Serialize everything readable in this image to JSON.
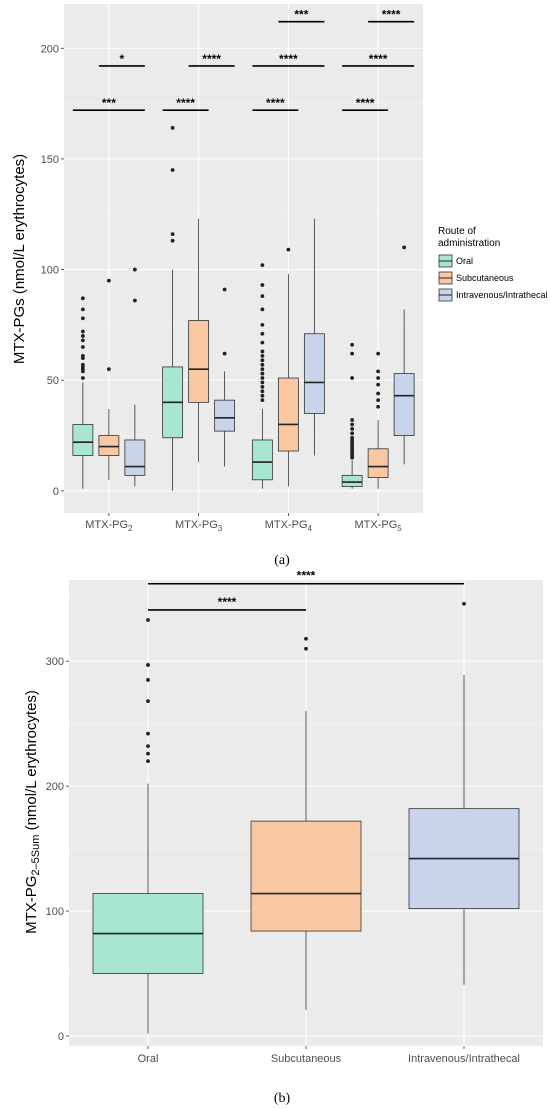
{
  "panel_a_label": "(a)",
  "panel_b_label": "(b)",
  "legend": {
    "title_line1": "Route of",
    "title_line2": "administration",
    "items": [
      {
        "label": "Oral",
        "color": "#a8e6d2"
      },
      {
        "label": "Subcutaneous",
        "color": "#f9c8a2"
      },
      {
        "label": "Intravenous/Intrathecal",
        "color": "#c8d4ea"
      }
    ]
  },
  "chart_data": [
    {
      "type": "box",
      "ylabel": "MTX-PGs (nmol/L erythrocytes)",
      "ylim": [
        -10,
        220
      ],
      "yticks": [
        0,
        50,
        100,
        150,
        200
      ],
      "categories": [
        {
          "base": "MTX-PG",
          "sub": "2"
        },
        {
          "base": "MTX-PG",
          "sub": "3"
        },
        {
          "base": "MTX-PG",
          "sub": "4"
        },
        {
          "base": "MTX-PG",
          "sub": "5"
        }
      ],
      "series_colors": [
        "#a8e6d2",
        "#f9c8a2",
        "#c8d4ea"
      ],
      "boxes": [
        [
          {
            "min": 1,
            "q1": 16,
            "median": 22,
            "q3": 30,
            "max": 49,
            "outliers": [
              51,
              54,
              55,
              56,
              57,
              60,
              61,
              65,
              68,
              70,
              72,
              78,
              82,
              87
            ]
          },
          {
            "min": 5,
            "q1": 16,
            "median": 20,
            "q3": 25,
            "max": 37,
            "outliers": [
              55,
              95
            ]
          },
          {
            "min": 2,
            "q1": 7,
            "median": 11,
            "q3": 23,
            "max": 39,
            "outliers": [
              86,
              100
            ]
          }
        ],
        [
          {
            "min": 0,
            "q1": 24,
            "median": 40,
            "q3": 56,
            "max": 100,
            "outliers": [
              113,
              116,
              145,
              164
            ]
          },
          {
            "min": 13,
            "q1": 40,
            "median": 55,
            "q3": 77,
            "max": 123,
            "outliers": []
          },
          {
            "min": 11,
            "q1": 27,
            "median": 33,
            "q3": 41,
            "max": 54,
            "outliers": [
              62,
              91
            ]
          }
        ],
        [
          {
            "min": 1,
            "q1": 5,
            "median": 13,
            "q3": 23,
            "max": 37,
            "outliers": [
              41,
              43,
              45,
              47,
              49,
              51,
              53,
              55,
              57,
              59,
              61,
              63,
              67,
              71,
              75,
              82,
              88,
              93,
              102
            ]
          },
          {
            "min": 2,
            "q1": 18,
            "median": 30,
            "q3": 51,
            "max": 98,
            "outliers": [
              109
            ]
          },
          {
            "min": 16,
            "q1": 35,
            "median": 49,
            "q3": 71,
            "max": 123,
            "outliers": []
          }
        ],
        [
          {
            "min": 1,
            "q1": 2,
            "median": 4,
            "q3": 7,
            "max": 14,
            "outliers": [
              15,
              16,
              17,
              18,
              19,
              20,
              21,
              22,
              23,
              24,
              26,
              28,
              30,
              32,
              51,
              62,
              66
            ]
          },
          {
            "min": 1,
            "q1": 6,
            "median": 11,
            "q3": 19,
            "max": 32,
            "outliers": [
              38,
              41,
              44,
              48,
              51,
              54,
              62
            ]
          },
          {
            "min": 12,
            "q1": 25,
            "median": 43,
            "q3": 53,
            "max": 82,
            "outliers": [
              110
            ]
          }
        ]
      ],
      "significance": [
        {
          "group": 0,
          "from": 0,
          "to": 2,
          "y": 172,
          "label": "***"
        },
        {
          "group": 0,
          "from": 1,
          "to": 2,
          "y": 192,
          "label": "*"
        },
        {
          "group": 1,
          "from": 0,
          "to": 1,
          "y": 172,
          "label": "****"
        },
        {
          "group": 1,
          "from": 1,
          "to": 2,
          "y": 192,
          "label": "****"
        },
        {
          "group": 2,
          "from": 0,
          "to": 1,
          "y": 172,
          "label": "****"
        },
        {
          "group": 2,
          "from": 0,
          "to": 2,
          "y": 192,
          "label": "****"
        },
        {
          "group": 2,
          "from": 1,
          "to": 2,
          "y": 212,
          "label": "***"
        },
        {
          "group": 3,
          "from": 0,
          "to": 1,
          "y": 172,
          "label": "****"
        },
        {
          "group": 3,
          "from": 0,
          "to": 2,
          "y": 192,
          "label": "****"
        },
        {
          "group": 3,
          "from": 1,
          "to": 2,
          "y": 212,
          "label": "****"
        }
      ]
    },
    {
      "type": "box",
      "ylabel_base": "MTX-PG",
      "ylabel_sub": "2–5Sum",
      "ylabel_rest": " (nmol/L erythrocytes)",
      "ylim": [
        -8,
        365
      ],
      "yticks": [
        0,
        100,
        200,
        300
      ],
      "categories": [
        "Oral",
        "Subcutaneous",
        "Intravenous/Intrathecal"
      ],
      "series_colors": [
        "#a8e6d2",
        "#f9c8a2",
        "#c8d4ea"
      ],
      "boxes": [
        {
          "min": 2,
          "q1": 50,
          "median": 82,
          "q3": 114,
          "max": 202,
          "outliers": [
            220,
            226,
            232,
            242,
            268,
            285,
            297,
            333
          ]
        },
        {
          "min": 21,
          "q1": 84,
          "median": 114,
          "q3": 172,
          "max": 260,
          "outliers": [
            310,
            318
          ]
        },
        {
          "min": 41,
          "q1": 102,
          "median": 142,
          "q3": 182,
          "max": 289,
          "outliers": [
            346
          ]
        }
      ],
      "significance": [
        {
          "from": 0,
          "to": 1,
          "y": 341,
          "label": "****"
        },
        {
          "from": 0,
          "to": 2,
          "y": 362,
          "label": "****"
        }
      ]
    }
  ]
}
